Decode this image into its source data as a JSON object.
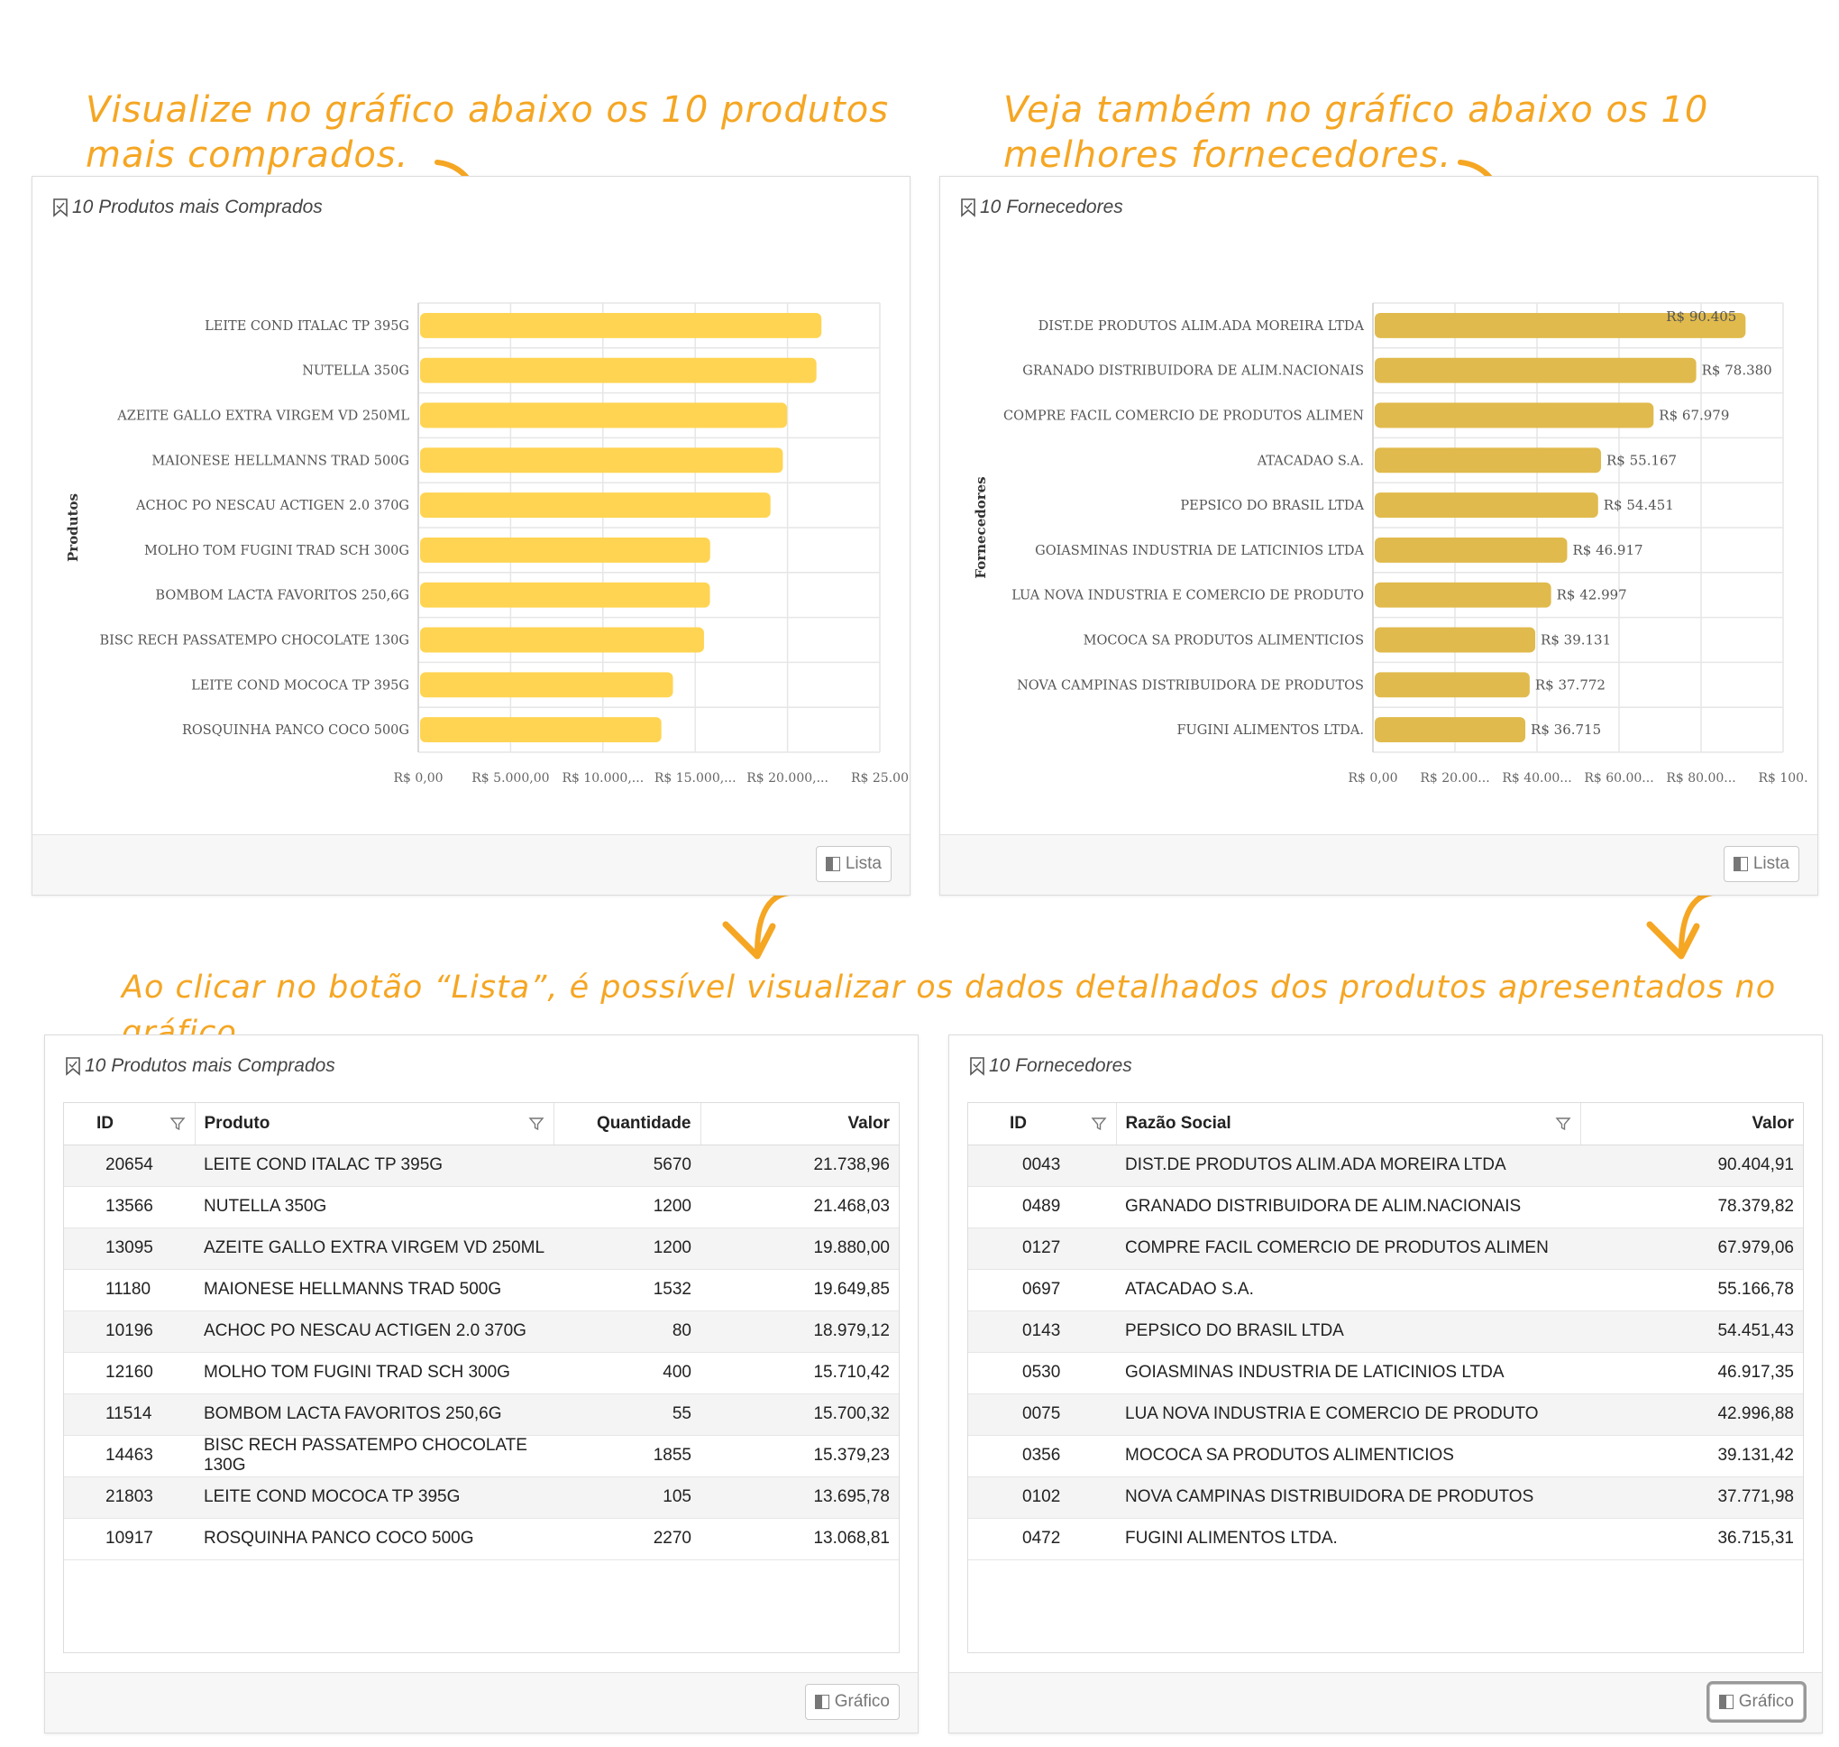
{
  "annotations": {
    "top_left": [
      "Visualize no gráfico abaixo os 10 produtos",
      "mais comprados."
    ],
    "top_right": [
      "Veja também no gráfico abaixo os 10",
      "melhores fornecedores."
    ],
    "middle": "Ao clicar no botão “Lista”, é possível visualizar os dados detalhados dos produtos apresentados no gráfico."
  },
  "colors": {
    "accent": "#f5a623",
    "bar_products": "#ffd452",
    "bar_suppliers": "#e0ba4c"
  },
  "products_chart_panel": {
    "title": "10 Produtos mais Comprados",
    "button": "Lista",
    "icon": "bookmark-icon"
  },
  "suppliers_chart_panel": {
    "title": "10 Fornecedores",
    "button": "Lista",
    "icon": "bookmark-icon"
  },
  "products_table_panel": {
    "title": "10 Produtos mais Comprados",
    "button": "Gráfico",
    "columns": [
      "ID",
      "Produto",
      "Quantidade",
      "Valor"
    ],
    "rows": [
      [
        "20654",
        "LEITE COND ITALAC TP 395G",
        "5670",
        "21.738,96"
      ],
      [
        "13566",
        "NUTELLA 350G",
        "1200",
        "21.468,03"
      ],
      [
        "13095",
        "AZEITE GALLO EXTRA VIRGEM VD 250ML",
        "1200",
        "19.880,00"
      ],
      [
        "11180",
        "MAIONESE HELLMANNS TRAD 500G",
        "1532",
        "19.649,85"
      ],
      [
        "10196",
        "ACHOC PO NESCAU ACTIGEN 2.0 370G",
        "80",
        "18.979,12"
      ],
      [
        "12160",
        "MOLHO TOM FUGINI TRAD SCH 300G",
        "400",
        "15.710,42"
      ],
      [
        "11514",
        "BOMBOM LACTA FAVORITOS 250,6G",
        "55",
        "15.700,32"
      ],
      [
        "14463",
        "BISC RECH PASSATEMPO CHOCOLATE 130G",
        "1855",
        "15.379,23"
      ],
      [
        "21803",
        "LEITE COND MOCOCA TP 395G",
        "105",
        "13.695,78"
      ],
      [
        "10917",
        "ROSQUINHA PANCO COCO 500G",
        "2270",
        "13.068,81"
      ]
    ]
  },
  "suppliers_table_panel": {
    "title": "10 Fornecedores",
    "button": "Gráfico",
    "columns": [
      "ID",
      "Razão Social",
      "Valor"
    ],
    "rows": [
      [
        "0043",
        "DIST.DE PRODUTOS ALIM.ADA MOREIRA LTDA",
        "90.404,91"
      ],
      [
        "0489",
        "GRANADO DISTRIBUIDORA DE ALIM.NACIONAIS",
        "78.379,82"
      ],
      [
        "0127",
        "COMPRE FACIL COMERCIO DE PRODUTOS ALIMEN",
        "67.979,06"
      ],
      [
        "0697",
        "ATACADAO S.A.",
        "55.166,78"
      ],
      [
        "0143",
        "PEPSICO DO BRASIL LTDA",
        "54.451,43"
      ],
      [
        "0530",
        "GOIASMINAS INDUSTRIA DE LATICINIOS LTDA",
        "46.917,35"
      ],
      [
        "0075",
        "LUA NOVA INDUSTRIA E COMERCIO DE PRODUTO",
        "42.996,88"
      ],
      [
        "0356",
        "MOCOCA SA PRODUTOS ALIMENTICIOS",
        "39.131,42"
      ],
      [
        "0102",
        "NOVA CAMPINAS DISTRIBUIDORA DE PRODUTOS",
        "37.771,98"
      ],
      [
        "0472",
        "FUGINI ALIMENTOS LTDA.",
        "36.715,31"
      ]
    ]
  },
  "chart_data": [
    {
      "type": "bar",
      "orientation": "horizontal",
      "ylabel": "Produtos",
      "categories": [
        "LEITE COND ITALAC TP 395G",
        "NUTELLA 350G",
        "AZEITE GALLO EXTRA VIRGEM VD 250ML",
        "MAIONESE HELLMANNS TRAD 500G",
        "ACHOC PO NESCAU ACTIGEN 2.0 370G",
        "MOLHO TOM FUGINI TRAD SCH 300G",
        "BOMBOM LACTA FAVORITOS 250,6G",
        "BISC RECH PASSATEMPO CHOCOLATE 130G",
        "LEITE COND MOCOCA TP 395G",
        "ROSQUINHA PANCO COCO 500G"
      ],
      "values": [
        21738.96,
        21468.03,
        19880.0,
        19649.85,
        18979.12,
        15710.42,
        15700.32,
        15379.23,
        13695.78,
        13068.81
      ],
      "xlim": [
        0,
        25000
      ],
      "xticks": [
        0,
        5000,
        10000,
        15000,
        20000,
        25000
      ],
      "xtick_labels": [
        "R$ 0,00",
        "R$ 5.000,00",
        "R$ 10.000,...",
        "R$ 15.000,...",
        "R$ 20.000,...",
        "R$ 25.00"
      ],
      "grid": true
    },
    {
      "type": "bar",
      "orientation": "horizontal",
      "ylabel": "Fornecedores",
      "categories": [
        "DIST.DE PRODUTOS ALIM.ADA MOREIRA LTDA",
        "GRANADO DISTRIBUIDORA DE ALIM.NACIONAIS",
        "COMPRE FACIL COMERCIO DE PRODUTOS ALIMEN",
        "ATACADAO S.A.",
        "PEPSICO DO BRASIL LTDA",
        "GOIASMINAS INDUSTRIA DE LATICINIOS LTDA",
        "LUA NOVA INDUSTRIA E COMERCIO DE PRODUTO",
        "MOCOCA SA PRODUTOS ALIMENTICIOS",
        "NOVA CAMPINAS DISTRIBUIDORA DE PRODUTOS",
        "FUGINI ALIMENTOS LTDA."
      ],
      "values": [
        90404.91,
        78379.82,
        67979.06,
        55166.78,
        54451.43,
        46917.35,
        42996.88,
        39131.42,
        37771.98,
        36715.31
      ],
      "data_labels": [
        "R$ 90.405",
        "R$ 78.380",
        "R$ 67.979",
        "R$ 55.167",
        "R$ 54.451",
        "R$ 46.917",
        "R$ 42.997",
        "R$ 39.131",
        "R$ 37.772",
        "R$ 36.715"
      ],
      "xlim": [
        0,
        100000
      ],
      "xticks": [
        0,
        20000,
        40000,
        60000,
        80000,
        100000
      ],
      "xtick_labels": [
        "R$ 0,00",
        "R$ 20.00...",
        "R$ 40.00...",
        "R$ 60.00...",
        "R$ 80.00...",
        "R$ 100."
      ],
      "grid": true
    }
  ]
}
